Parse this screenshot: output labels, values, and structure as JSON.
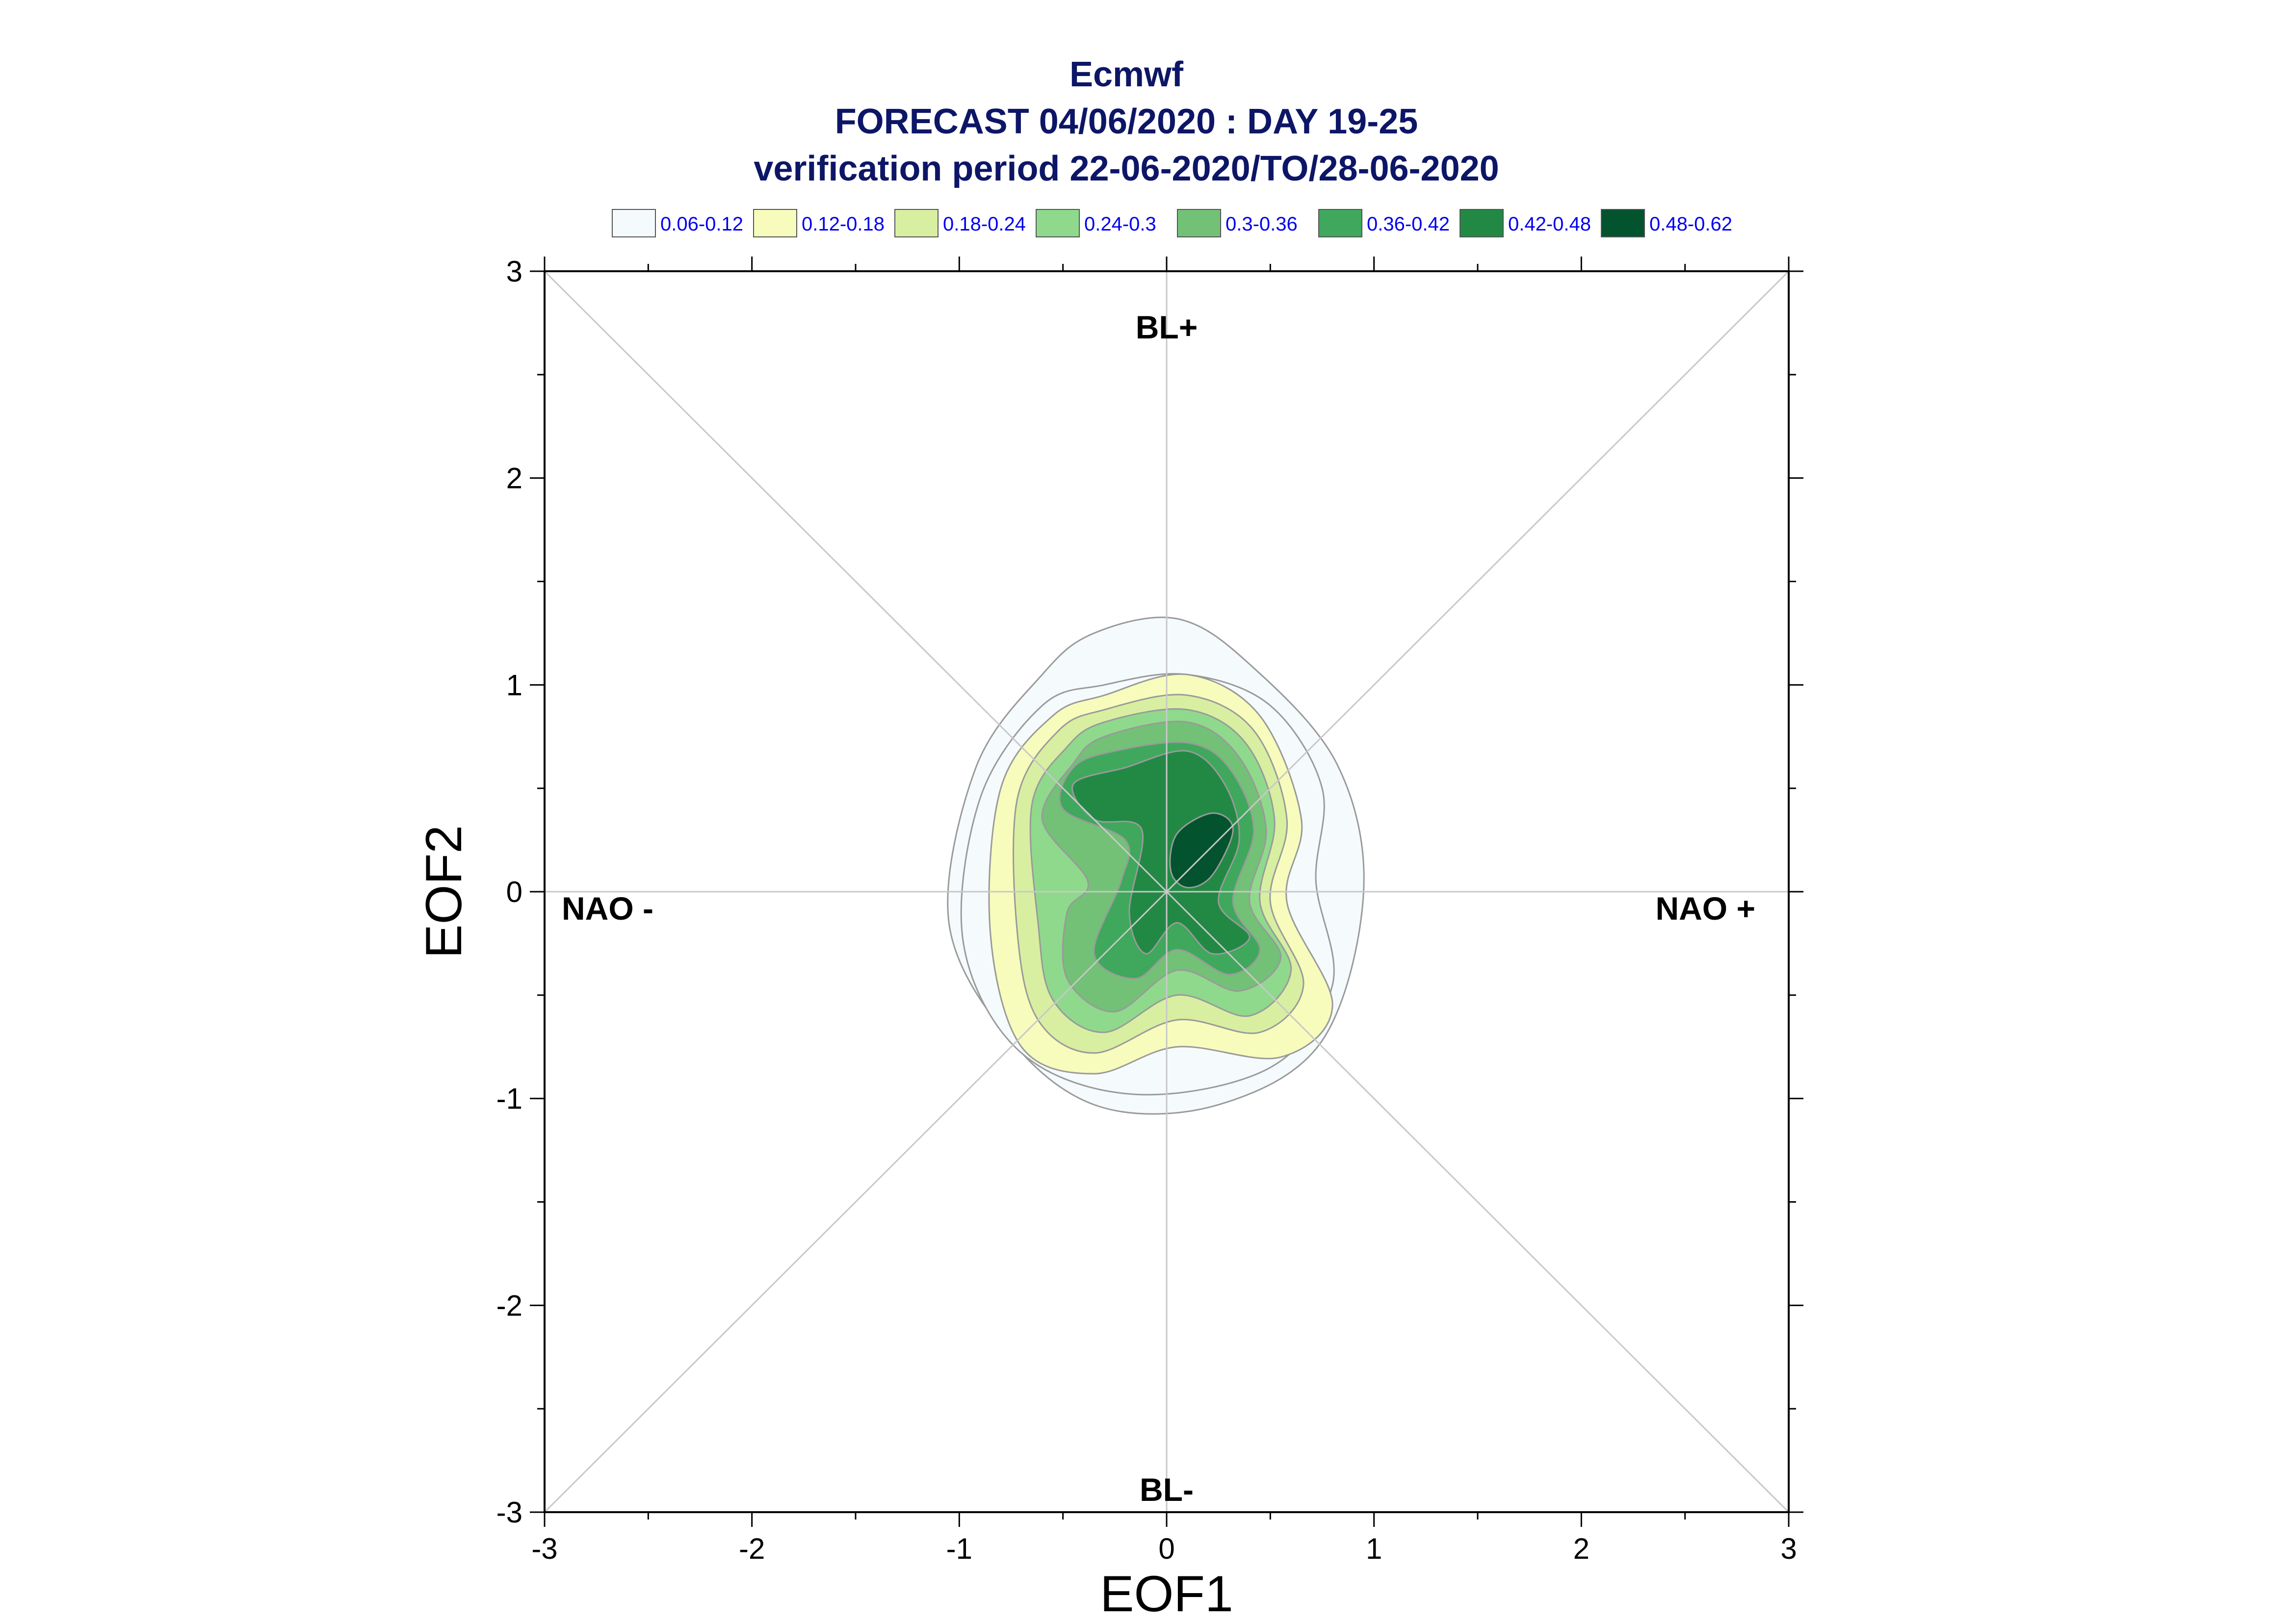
{
  "chart_data": {
    "type": "contour",
    "title_lines": [
      "Ecmwf",
      "FORECAST 04/06/2020 : DAY 19-25",
      "verification period 22-06-2020/TO/28-06-2020"
    ],
    "xlabel": "EOF1",
    "ylabel": "EOF2",
    "xlim": [
      -3,
      3
    ],
    "ylim": [
      -3,
      3
    ],
    "xticks": [
      "-3",
      "-2",
      "-1",
      "0",
      "1",
      "2",
      "3"
    ],
    "yticks": [
      "-3",
      "-2",
      "-1",
      "0",
      "1",
      "2",
      "3"
    ],
    "regime_labels": {
      "top": "BL+",
      "bottom": "BL-",
      "left": "NAO -",
      "right": "NAO +"
    },
    "legend": [
      {
        "label": "0.06-0.12",
        "color": "#f5fafd"
      },
      {
        "label": "0.12-0.18",
        "color": "#f7fcbc"
      },
      {
        "label": "0.18-0.24",
        "color": "#d8efa2"
      },
      {
        "label": "0.24-0.3",
        "color": "#8fd98c"
      },
      {
        "label": "0.3-0.36",
        "color": "#73c176"
      },
      {
        "label": "0.36-0.42",
        "color": "#3fa85c"
      },
      {
        "label": "0.42-0.48",
        "color": "#228944"
      },
      {
        "label": "0.48-0.62",
        "color": "#03532f"
      }
    ],
    "contours": [
      {
        "level": "0.06-0.12",
        "points": [
          [
            -0.35,
            1.25
          ],
          [
            0.05,
            1.32
          ],
          [
            0.4,
            1.1
          ],
          [
            0.82,
            0.62
          ],
          [
            0.95,
            0.0
          ],
          [
            0.75,
            -0.72
          ],
          [
            0.25,
            -1.03
          ],
          [
            -0.32,
            -1.04
          ],
          [
            -0.75,
            -0.72
          ],
          [
            -1.05,
            -0.15
          ],
          [
            -0.92,
            0.6
          ],
          [
            -0.6,
            1.05
          ]
        ]
      },
      {
        "level": "0.06-0.12",
        "points": [
          [
            -0.3,
            1.0
          ],
          [
            0.1,
            1.05
          ],
          [
            0.5,
            0.9
          ],
          [
            0.75,
            0.5
          ],
          [
            0.72,
            0.05
          ],
          [
            0.8,
            -0.45
          ],
          [
            0.5,
            -0.85
          ],
          [
            -0.15,
            -0.98
          ],
          [
            -0.7,
            -0.78
          ],
          [
            -0.98,
            -0.25
          ],
          [
            -0.9,
            0.45
          ],
          [
            -0.6,
            0.9
          ]
        ]
      },
      {
        "level": "0.12-0.18",
        "points": [
          [
            -0.3,
            0.95
          ],
          [
            0.1,
            1.05
          ],
          [
            0.45,
            0.85
          ],
          [
            0.65,
            0.35
          ],
          [
            0.58,
            -0.05
          ],
          [
            0.8,
            -0.55
          ],
          [
            0.55,
            -0.8
          ],
          [
            0.05,
            -0.75
          ],
          [
            -0.35,
            -0.88
          ],
          [
            -0.7,
            -0.75
          ],
          [
            -0.85,
            -0.2
          ],
          [
            -0.8,
            0.5
          ],
          [
            -0.55,
            0.85
          ]
        ]
      },
      {
        "level": "0.18-0.24",
        "points": [
          [
            -0.3,
            0.88
          ],
          [
            0.1,
            0.95
          ],
          [
            0.42,
            0.78
          ],
          [
            0.58,
            0.35
          ],
          [
            0.5,
            -0.05
          ],
          [
            0.66,
            -0.45
          ],
          [
            0.45,
            -0.68
          ],
          [
            0.05,
            -0.62
          ],
          [
            -0.35,
            -0.78
          ],
          [
            -0.62,
            -0.62
          ],
          [
            -0.72,
            -0.2
          ],
          [
            -0.72,
            0.45
          ],
          [
            -0.52,
            0.78
          ]
        ]
      },
      {
        "level": "0.24-0.3",
        "points": [
          [
            -0.3,
            0.82
          ],
          [
            0.1,
            0.88
          ],
          [
            0.38,
            0.72
          ],
          [
            0.52,
            0.35
          ],
          [
            0.45,
            -0.05
          ],
          [
            0.6,
            -0.38
          ],
          [
            0.4,
            -0.6
          ],
          [
            0.05,
            -0.5
          ],
          [
            -0.3,
            -0.68
          ],
          [
            -0.55,
            -0.52
          ],
          [
            -0.62,
            -0.15
          ],
          [
            -0.65,
            0.42
          ],
          [
            -0.48,
            0.7
          ]
        ]
      },
      {
        "level": "0.3-0.36",
        "points": [
          [
            -0.3,
            0.75
          ],
          [
            0.1,
            0.82
          ],
          [
            0.35,
            0.65
          ],
          [
            0.48,
            0.3
          ],
          [
            0.4,
            -0.05
          ],
          [
            0.55,
            -0.32
          ],
          [
            0.35,
            -0.48
          ],
          [
            0.05,
            -0.38
          ],
          [
            -0.25,
            -0.58
          ],
          [
            -0.48,
            -0.42
          ],
          [
            -0.48,
            -0.1
          ],
          [
            -0.38,
            0.05
          ],
          [
            -0.6,
            0.35
          ],
          [
            -0.45,
            0.62
          ]
        ]
      },
      {
        "level": "0.36-0.42",
        "points": [
          [
            -0.25,
            0.68
          ],
          [
            0.1,
            0.72
          ],
          [
            0.3,
            0.6
          ],
          [
            0.42,
            0.3
          ],
          [
            0.32,
            -0.05
          ],
          [
            0.45,
            -0.28
          ],
          [
            0.3,
            -0.4
          ],
          [
            0.05,
            -0.28
          ],
          [
            -0.15,
            -0.42
          ],
          [
            -0.35,
            -0.3
          ],
          [
            -0.22,
            0.05
          ],
          [
            -0.2,
            0.25
          ],
          [
            -0.5,
            0.4
          ],
          [
            -0.45,
            0.6
          ]
        ]
      },
      {
        "level": "0.42-0.48",
        "points": [
          [
            -0.2,
            0.6
          ],
          [
            0.1,
            0.68
          ],
          [
            0.28,
            0.52
          ],
          [
            0.35,
            0.25
          ],
          [
            0.25,
            -0.05
          ],
          [
            0.4,
            -0.22
          ],
          [
            0.22,
            -0.3
          ],
          [
            0.05,
            -0.15
          ],
          [
            -0.1,
            -0.3
          ],
          [
            -0.18,
            -0.1
          ],
          [
            -0.12,
            0.3
          ],
          [
            -0.35,
            0.35
          ],
          [
            -0.45,
            0.52
          ]
        ]
      },
      {
        "level": "0.48-0.62",
        "points": [
          [
            0.05,
            0.28
          ],
          [
            0.22,
            0.38
          ],
          [
            0.32,
            0.3
          ],
          [
            0.22,
            0.08
          ],
          [
            0.1,
            0.02
          ],
          [
            0.02,
            0.1
          ]
        ]
      }
    ]
  }
}
